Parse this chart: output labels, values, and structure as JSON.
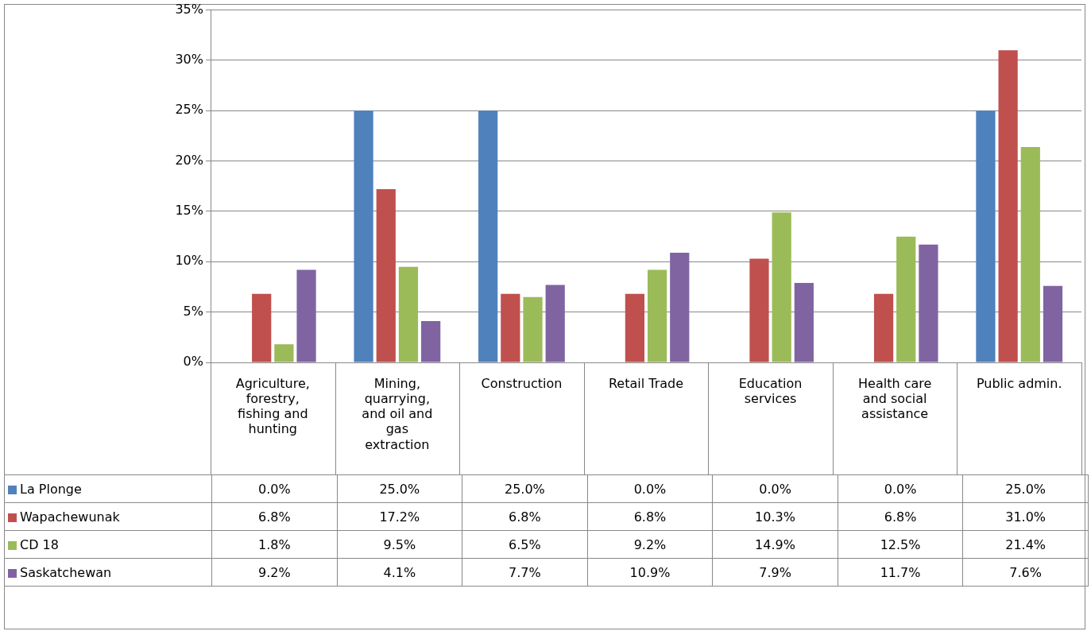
{
  "chart_data": {
    "type": "bar",
    "categories": [
      "Agriculture, forestry, fishing and hunting",
      "Mining, quarrying, and oil and gas extraction",
      "Construction",
      "Retail Trade",
      "Education services",
      "Health care and social assistance",
      "Public admin."
    ],
    "series": [
      {
        "name": "La Plonge",
        "color": "#4f81bd",
        "values": [
          0.0,
          25.0,
          25.0,
          0.0,
          0.0,
          0.0,
          25.0
        ]
      },
      {
        "name": "Wapachewunak",
        "color": "#c0504d",
        "values": [
          6.8,
          17.2,
          6.8,
          6.8,
          10.3,
          6.8,
          31.0
        ]
      },
      {
        "name": "CD 18",
        "color": "#9bbb59",
        "values": [
          1.8,
          9.5,
          6.5,
          9.2,
          14.9,
          12.5,
          21.4
        ]
      },
      {
        "name": "Saskatchewan",
        "color": "#8064a2",
        "values": [
          9.2,
          4.1,
          7.7,
          10.9,
          7.9,
          11.7,
          7.6
        ]
      }
    ],
    "ylim": [
      0,
      35
    ],
    "yticks": [
      {
        "value": 0,
        "label": "0%"
      },
      {
        "value": 5,
        "label": "5%"
      },
      {
        "value": 10,
        "label": "10%"
      },
      {
        "value": 15,
        "label": "15%"
      },
      {
        "value": 20,
        "label": "20%"
      },
      {
        "value": 25,
        "label": "25%"
      },
      {
        "value": 30,
        "label": "30%"
      },
      {
        "value": 35,
        "label": "35%"
      }
    ],
    "value_labels": [
      [
        "0.0%",
        "25.0%",
        "25.0%",
        "0.0%",
        "0.0%",
        "0.0%",
        "25.0%"
      ],
      [
        "6.8%",
        "17.2%",
        "6.8%",
        "6.8%",
        "10.3%",
        "6.8%",
        "31.0%"
      ],
      [
        "1.8%",
        "9.5%",
        "6.5%",
        "9.2%",
        "14.9%",
        "12.5%",
        "21.4%"
      ],
      [
        "9.2%",
        "4.1%",
        "7.7%",
        "10.9%",
        "7.9%",
        "11.7%",
        "7.6%"
      ]
    ],
    "grid": "y",
    "legend": "bottom left"
  }
}
